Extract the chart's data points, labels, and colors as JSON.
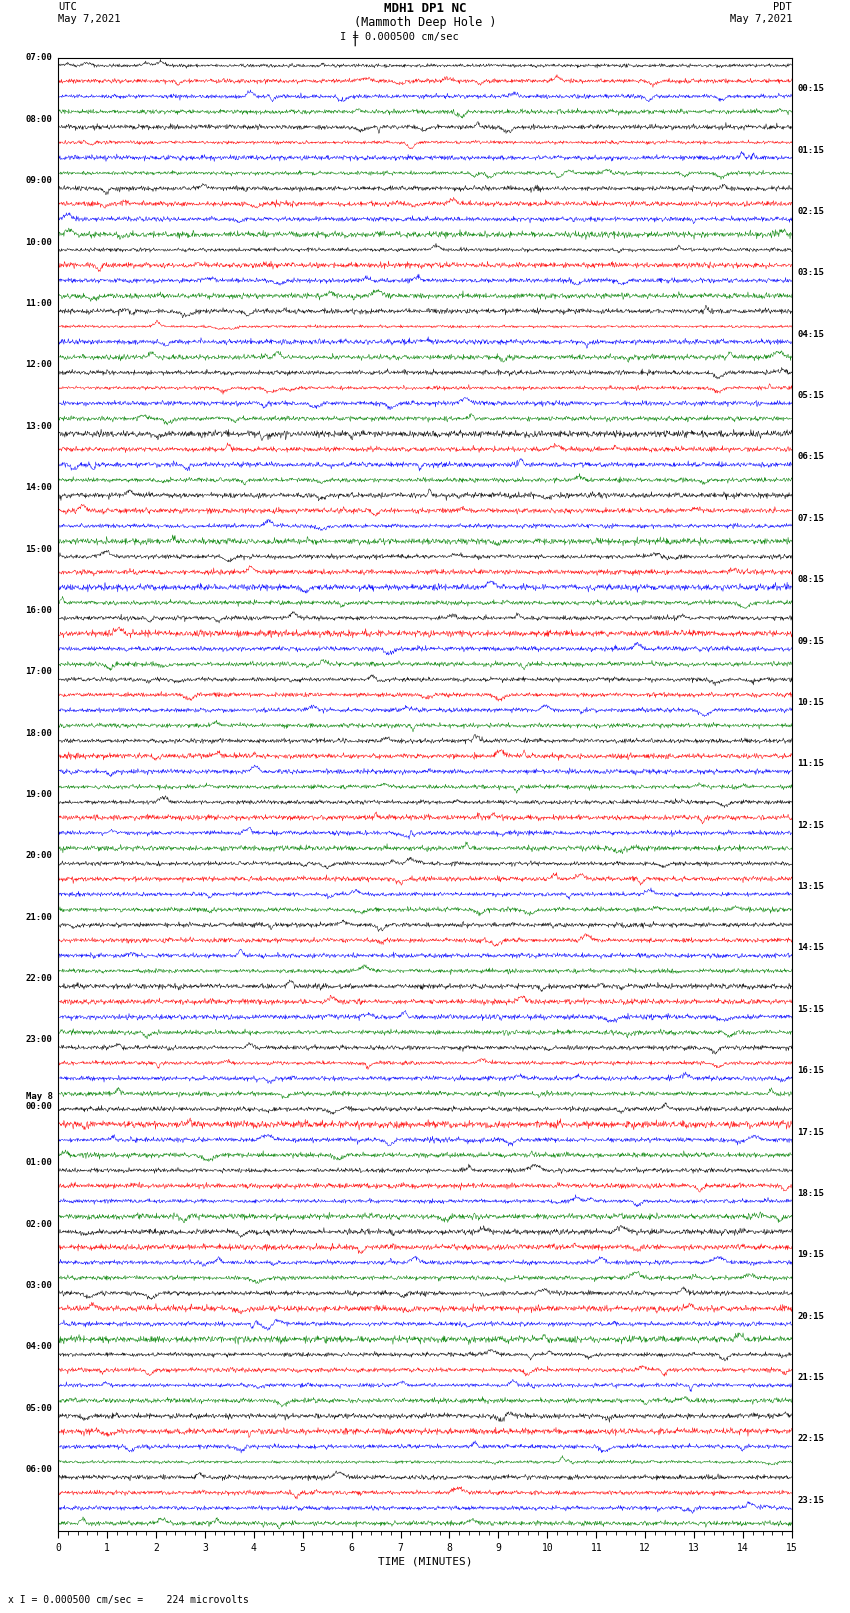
{
  "title_line1": "MDH1 DP1 NC",
  "title_line2": "(Mammoth Deep Hole )",
  "scale_label": "I = 0.000500 cm/sec",
  "left_header": "UTC\nMay 7,2021",
  "right_header": "PDT\nMay 7,2021",
  "footer_note": "x I = 0.000500 cm/sec =    224 microvolts",
  "xlabel": "TIME (MINUTES)",
  "left_times": [
    "07:00",
    "08:00",
    "09:00",
    "10:00",
    "11:00",
    "12:00",
    "13:00",
    "14:00",
    "15:00",
    "16:00",
    "17:00",
    "18:00",
    "19:00",
    "20:00",
    "21:00",
    "22:00",
    "23:00",
    "May 8\n00:00",
    "01:00",
    "02:00",
    "03:00",
    "04:00",
    "05:00",
    "06:00"
  ],
  "right_times": [
    "00:15",
    "01:15",
    "02:15",
    "03:15",
    "04:15",
    "05:15",
    "06:15",
    "07:15",
    "08:15",
    "09:15",
    "10:15",
    "11:15",
    "12:15",
    "13:15",
    "14:15",
    "15:15",
    "16:15",
    "17:15",
    "18:15",
    "19:15",
    "20:15",
    "21:15",
    "22:15",
    "23:15"
  ],
  "n_rows": 24,
  "n_cols": 4,
  "colors": [
    "black",
    "red",
    "blue",
    "green"
  ],
  "bg_color": "white",
  "fig_width": 8.5,
  "fig_height": 16.13,
  "dpi": 100
}
